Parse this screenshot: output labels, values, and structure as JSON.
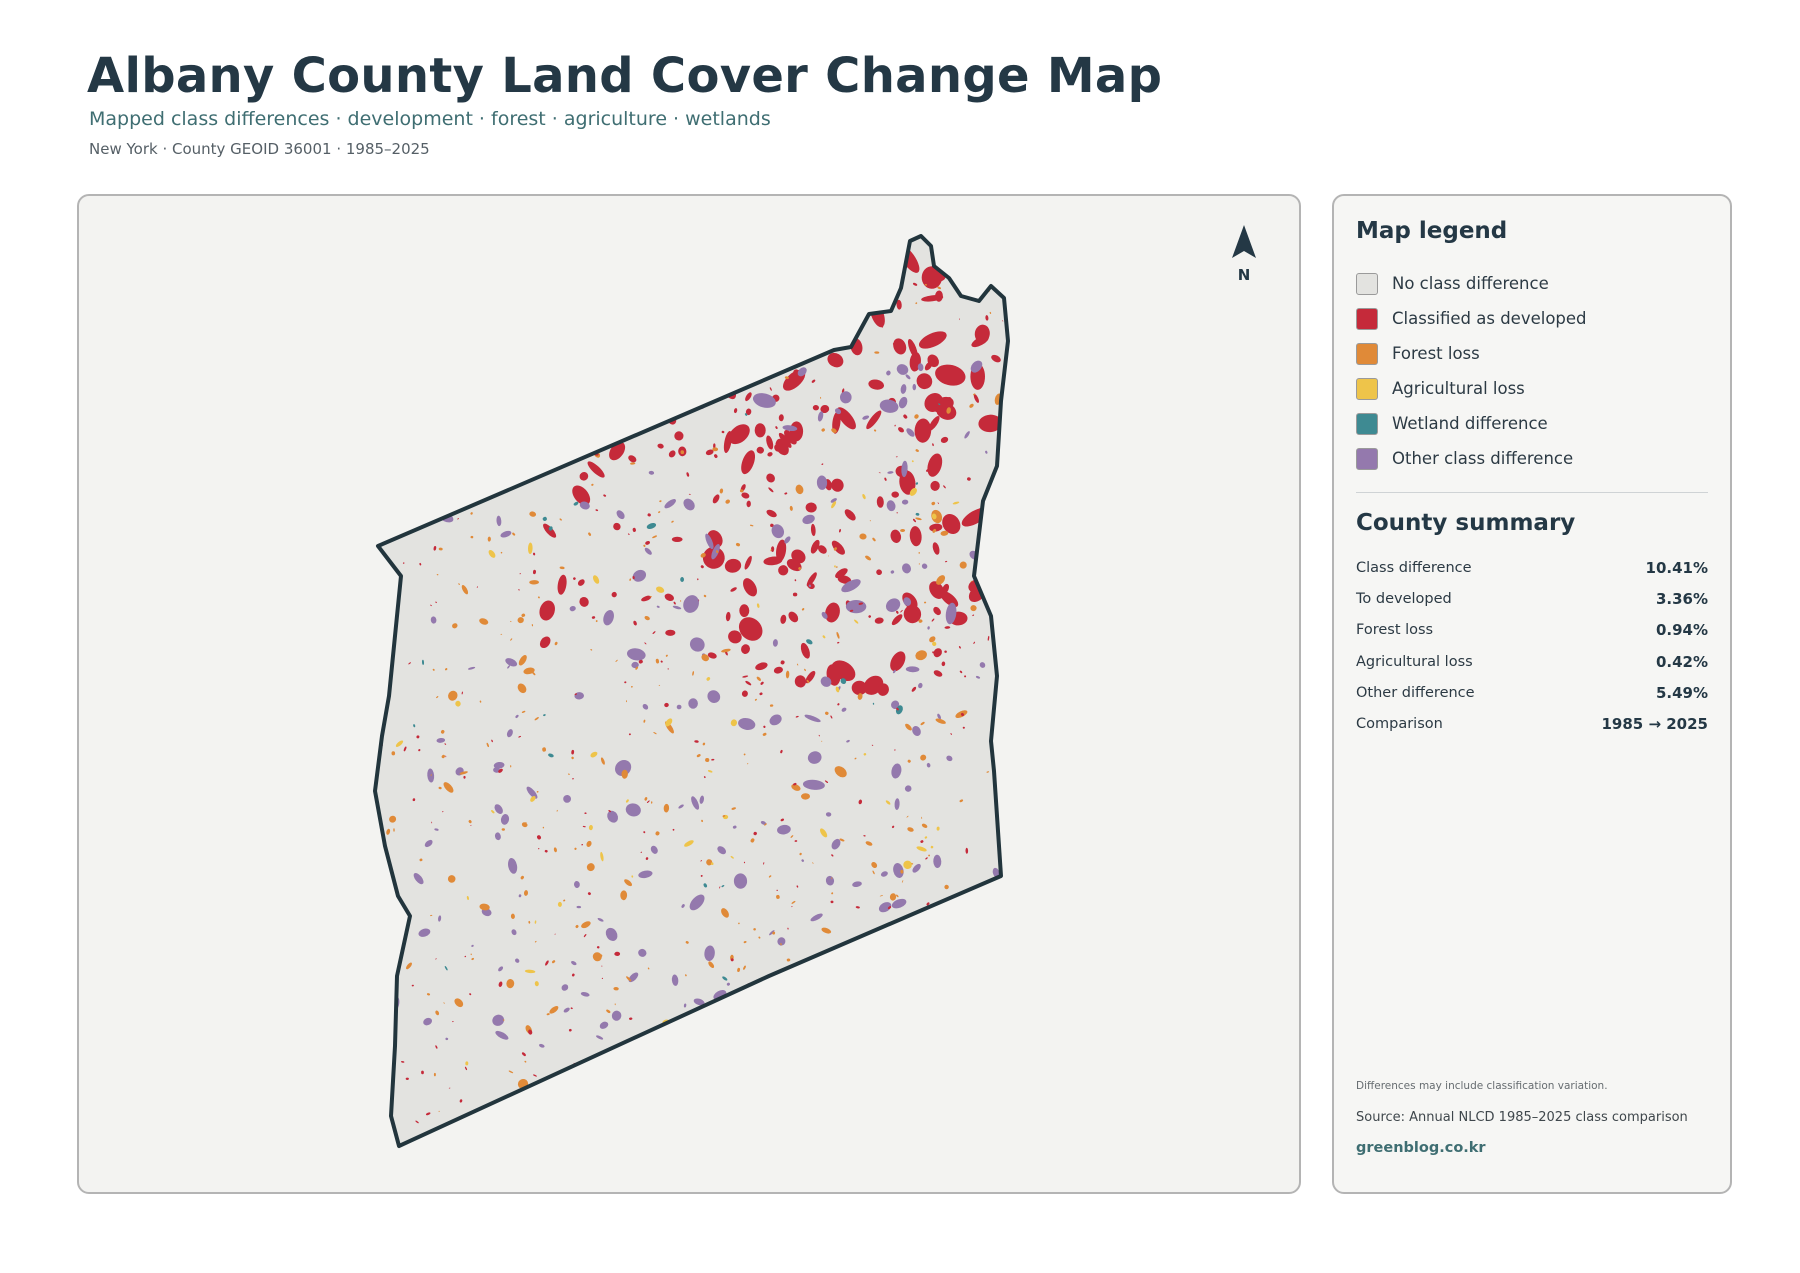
{
  "header": {
    "title": "Albany County Land Cover Change Map",
    "subtitle": "Mapped class differences · development · forest · agriculture · wetlands",
    "meta": "New York · County GEOID 36001 · 1985–2025"
  },
  "map": {
    "north_label": "N",
    "colors": {
      "panel_background": "#f3f3f1",
      "county_fill": "#e3e3e0",
      "county_outline": "#22353d"
    }
  },
  "legend": {
    "title": "Map legend",
    "items": [
      {
        "label": "No class difference",
        "color": "#e3e3e0"
      },
      {
        "label": "Classified as developed",
        "color": "#c52a3a"
      },
      {
        "label": "Forest loss",
        "color": "#e08a38"
      },
      {
        "label": "Agricultural loss",
        "color": "#eec44a"
      },
      {
        "label": "Wetland difference",
        "color": "#3e8a92"
      },
      {
        "label": "Other class difference",
        "color": "#9479ad"
      }
    ]
  },
  "summary": {
    "title": "County summary",
    "rows": [
      {
        "label": "Class difference",
        "value": "10.41%"
      },
      {
        "label": "To developed",
        "value": "3.36%"
      },
      {
        "label": "Forest loss",
        "value": "0.94%"
      },
      {
        "label": "Agricultural loss",
        "value": "0.42%"
      },
      {
        "label": "Other difference",
        "value": "5.49%"
      },
      {
        "label": "Comparison",
        "value": "1985 → 2025"
      }
    ]
  },
  "footer": {
    "note": "Differences may include classification variation.",
    "source": "Source: Annual NLCD 1985–2025 class comparison",
    "site": "greenblog.co.kr"
  }
}
